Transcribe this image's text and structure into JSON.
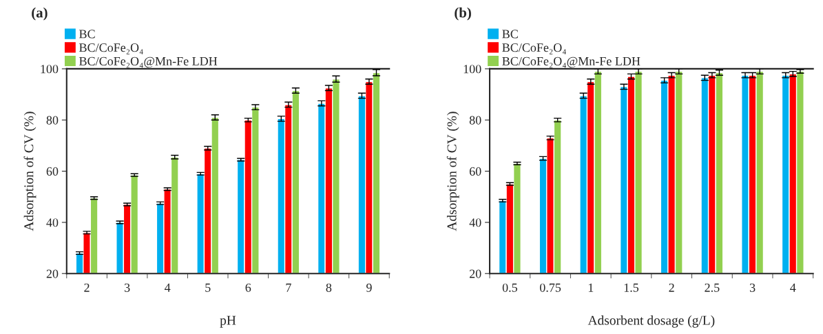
{
  "chart_data": [
    {
      "type": "bar",
      "annotations": [
        "(a)"
      ],
      "xlabel": "pH",
      "ylabel": "Adsorption of CV (%)",
      "categories": [
        "2",
        "3",
        "4",
        "5",
        "6",
        "7",
        "8",
        "9"
      ],
      "series": [
        {
          "name": "BC",
          "color": "#00b0f0",
          "values": [
            28,
            40,
            47.5,
            59,
            64.5,
            80.5,
            86.5,
            89.5
          ],
          "errors": [
            0.5,
            0.5,
            0.5,
            0.5,
            0.5,
            1,
            1,
            1
          ]
        },
        {
          "name": "BC/CoFe₂O₄",
          "color": "#ff0000",
          "values": [
            36,
            47,
            53,
            69,
            80,
            86,
            92.5,
            95
          ],
          "errors": [
            0.5,
            0.5,
            0.5,
            0.7,
            0.7,
            1,
            1,
            1
          ]
        },
        {
          "name": "BC/CoFe₂O₄@Mn-Fe LDH",
          "color": "#92d050",
          "values": [
            49.5,
            58.5,
            65.5,
            81,
            85,
            91.5,
            96,
            98.5
          ],
          "errors": [
            0.5,
            0.5,
            0.7,
            1,
            1,
            1,
            1.2,
            1.2
          ]
        }
      ],
      "ylim": [
        20,
        100
      ],
      "yticks": [
        20,
        40,
        60,
        80,
        100
      ],
      "grid": false,
      "legend": "top left"
    },
    {
      "type": "bar",
      "annotations": [
        "(b)"
      ],
      "xlabel": "Adsorbent dosage (g/L)",
      "ylabel": "Adsorption of CV (%)",
      "categories": [
        "0.5",
        "0.75",
        "1",
        "1.5",
        "2",
        "2.5",
        "3",
        "4"
      ],
      "series": [
        {
          "name": "BC",
          "color": "#00b0f0",
          "values": [
            48.5,
            65,
            89.5,
            93,
            95.5,
            96.5,
            97.5,
            97.5
          ],
          "errors": [
            0.5,
            0.7,
            1,
            1,
            1,
            1,
            1,
            1
          ]
        },
        {
          "name": "BC/CoFe₂O₄",
          "color": "#ff0000",
          "values": [
            55,
            73,
            95,
            97,
            97.5,
            97.5,
            97.5,
            98
          ],
          "errors": [
            0.5,
            0.7,
            1,
            1,
            1,
            1,
            1,
            1
          ]
        },
        {
          "name": "BC/CoFe₂O₄@Mn-Fe LDH",
          "color": "#92d050",
          "values": [
            63,
            80,
            99,
            99,
            99,
            98.5,
            99,
            99
          ],
          "errors": [
            0.5,
            0.7,
            1,
            1,
            1,
            1,
            1,
            0.7
          ]
        }
      ],
      "ylim": [
        20,
        100
      ],
      "yticks": [
        20,
        40,
        60,
        80,
        100
      ],
      "grid": false,
      "legend": "top left"
    }
  ]
}
